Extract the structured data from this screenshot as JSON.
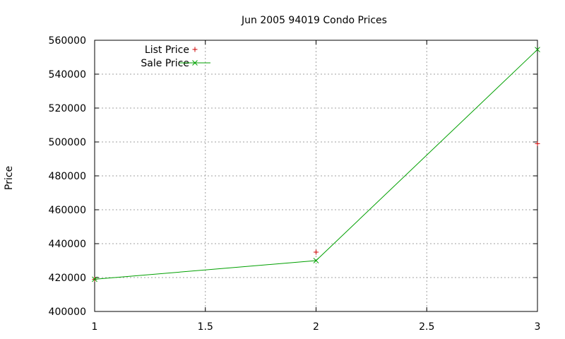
{
  "chart_data": {
    "type": "line",
    "title": "Jun 2005 94019 Condo Prices",
    "xlabel": "",
    "ylabel": "Price",
    "xlim": [
      1,
      3
    ],
    "ylim": [
      400000,
      560000
    ],
    "x_ticks": [
      "1",
      "1.5",
      "2",
      "2.5",
      "3"
    ],
    "y_ticks": [
      "400000",
      "420000",
      "440000",
      "460000",
      "480000",
      "500000",
      "520000",
      "540000",
      "560000"
    ],
    "grid": true,
    "legend_position": "top-left",
    "series": [
      {
        "name": "List Price",
        "style": "points",
        "marker": "+",
        "color": "#cc0000",
        "x": [
          1,
          2,
          3
        ],
        "values": [
          419000,
          435000,
          499000
        ]
      },
      {
        "name": "Sale Price",
        "style": "linespoints",
        "marker": "x",
        "color": "#00a000",
        "x": [
          1,
          2,
          3
        ],
        "values": [
          419000,
          430000,
          554500
        ]
      }
    ]
  }
}
